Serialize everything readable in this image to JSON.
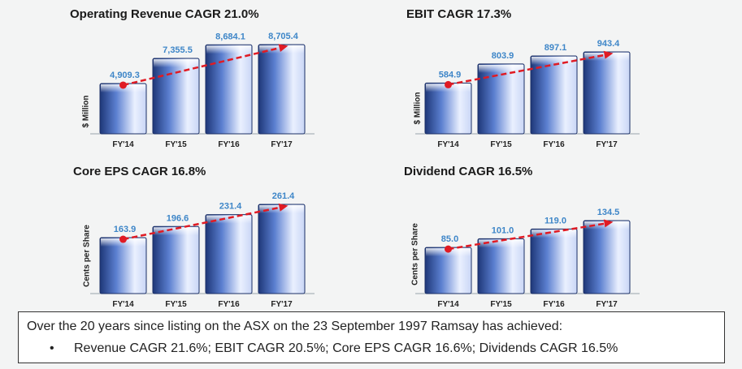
{
  "chart_data": [
    {
      "type": "bar",
      "title": "Operating Revenue CAGR 21.0%",
      "ylabel": "$ Million",
      "categories": [
        "FY'14",
        "FY'15",
        "FY'16",
        "FY'17"
      ],
      "values": [
        4909.3,
        7355.5,
        8684.1,
        8705.4
      ],
      "value_labels": [
        "4,909.3",
        "7,355.5",
        "8,684.1",
        "8,705.4"
      ],
      "trend_line": true
    },
    {
      "type": "bar",
      "title": "EBIT CAGR 17.3%",
      "ylabel": "$ Million",
      "categories": [
        "FY'14",
        "FY'15",
        "FY'16",
        "FY'17"
      ],
      "values": [
        584.9,
        803.9,
        897.1,
        943.4
      ],
      "value_labels": [
        "584.9",
        "803.9",
        "897.1",
        "943.4"
      ],
      "trend_line": true
    },
    {
      "type": "bar",
      "title": "Core EPS CAGR 16.8%",
      "ylabel": "Cents per Share",
      "categories": [
        "FY'14",
        "FY'15",
        "FY'16",
        "FY'17"
      ],
      "values": [
        163.9,
        196.6,
        231.4,
        261.4
      ],
      "value_labels": [
        "163.9",
        "196.6",
        "231.4",
        "261.4"
      ],
      "trend_line": true
    },
    {
      "type": "bar",
      "title": "Dividend CAGR 16.5%",
      "ylabel": "Cents per Share",
      "categories": [
        "FY'14",
        "FY'15",
        "FY'16",
        "FY'17"
      ],
      "values": [
        85.0,
        101.0,
        119.0,
        134.5
      ],
      "value_labels": [
        "85.0",
        "101.0",
        "119.0",
        "134.5"
      ],
      "trend_line": true
    }
  ],
  "colors": {
    "value_label": "#3e86c8",
    "trend_line": "#e01b24",
    "bar_dark": "#1e3778",
    "bar_light": "#eaf0ff"
  },
  "footer": {
    "line": "Over the 20 years since listing on the ASX on the 23 September 1997 Ramsay has achieved:",
    "bullet": "Revenue CAGR 21.6%; EBIT CAGR 20.5%; Core EPS CAGR 16.6%; Dividends CAGR 16.5%"
  }
}
